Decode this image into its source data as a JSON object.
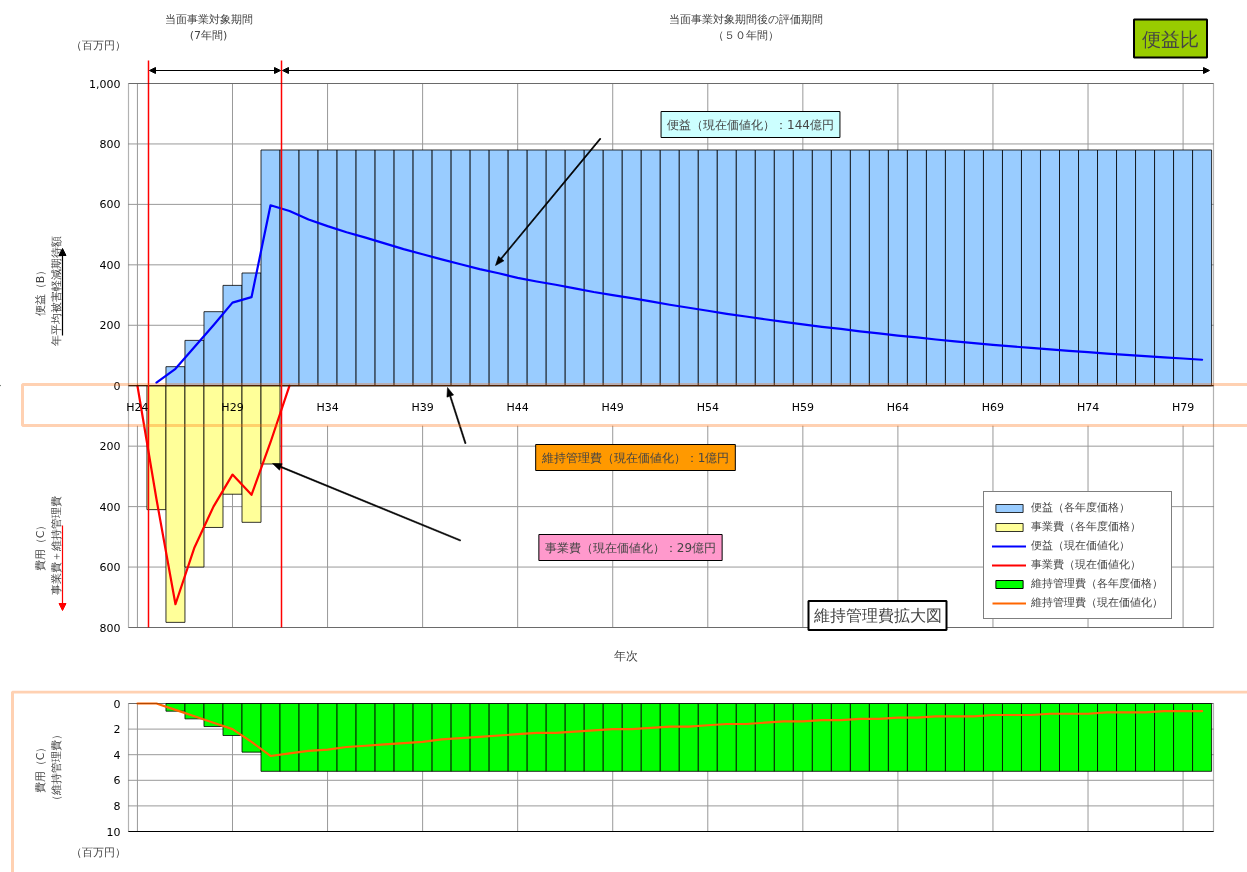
{
  "chart_data": [
    {
      "type": "bar",
      "categories": [
        "H24",
        null,
        null,
        null,
        null,
        "H29",
        null,
        null,
        null,
        null,
        "H34",
        null,
        null,
        null,
        null,
        "H39",
        null,
        null,
        null,
        null,
        "H44",
        null,
        null,
        null,
        null,
        "H49",
        null,
        null,
        null,
        null,
        "H54",
        null,
        null,
        null,
        null,
        "H59",
        null,
        null,
        null,
        null,
        "H64",
        null,
        null,
        null,
        null,
        "H69",
        null,
        null,
        null,
        null,
        "H74",
        null,
        null,
        null,
        null,
        "H79",
        null
      ],
      "xlabel": "年次",
      "ylabel": "便益（B）年平均被害軽減期待額",
      "ylim": [
        -800,
        1000
      ],
      "yticks": [
        {
          "value": -800,
          "label": "800"
        },
        {
          "value": -600,
          "label": "600"
        },
        {
          "value": -400,
          "label": "400"
        },
        {
          "value": -200,
          "label": "200"
        },
        0,
        200,
        400,
        600,
        800,
        {
          "value": 1000,
          "label": "1,000"
        }
      ],
      "grid": true,
      "legend": "bottom right",
      "series": [
        {
          "name": "便益（各年度価格）",
          "color": "#99ccff",
          "values": [
            null,
            null,
            63,
            150,
            245,
            332,
            373,
            780,
            780,
            780,
            780,
            780,
            780,
            780,
            780,
            780,
            780,
            780,
            780,
            780,
            780,
            780,
            780,
            780,
            780,
            780,
            780,
            780,
            780,
            780,
            780,
            780,
            780,
            780,
            780,
            780,
            780,
            780,
            780,
            780,
            780,
            780,
            780,
            780,
            780,
            780,
            780,
            780,
            780,
            780,
            780,
            780,
            780,
            780,
            780,
            780,
            780
          ]
        },
        {
          "name": "事業費（各年度価格）",
          "color": "#ffff99",
          "values": [
            null,
            -410,
            -783,
            -600,
            -469,
            -359,
            -452,
            -259,
            null,
            null,
            null,
            null,
            null,
            null,
            null,
            null,
            null,
            null,
            null,
            null,
            null,
            null,
            null,
            null,
            null,
            null,
            null,
            null,
            null,
            null,
            null,
            null,
            null,
            null,
            null,
            null,
            null,
            null,
            null,
            null,
            null,
            null,
            null,
            null,
            null,
            null,
            null,
            null,
            null,
            null,
            null,
            null,
            null,
            null,
            null,
            null,
            null
          ]
        },
        {
          "name": "便益（現在価値化）",
          "type": "line",
          "color": "#0000ff",
          "values": [
            null,
            10,
            56,
            128,
            200,
            275,
            293,
            597,
            578,
            550,
            528,
            508,
            490,
            471,
            452,
            435,
            418,
            402,
            386,
            372,
            357,
            345,
            334,
            322,
            310,
            300,
            290,
            279,
            268,
            258,
            248,
            238,
            229,
            220,
            211,
            203,
            195,
            188,
            180,
            173,
            166,
            160,
            153,
            147,
            141,
            135,
            130,
            125,
            120,
            115,
            111,
            106,
            102,
            98,
            94,
            90,
            86
          ]
        },
        {
          "name": "事業費（現在価値化）",
          "type": "line",
          "color": "#ff0000",
          "values": [
            0,
            -375,
            -723,
            -535,
            -400,
            -294,
            -361,
            -187,
            0,
            null,
            null,
            null,
            null,
            null,
            null,
            null,
            null,
            null,
            null,
            null,
            null,
            null,
            null,
            null,
            null,
            null,
            null,
            null,
            null,
            null,
            null,
            null,
            null,
            null,
            null,
            null,
            null,
            null,
            null,
            null,
            null,
            null,
            null,
            null,
            null,
            null,
            null,
            null,
            null,
            null,
            null,
            null,
            null,
            null,
            null,
            null,
            null
          ]
        }
      ],
      "annotations": [
        "当面事業対象期間(7年間)",
        "当面事業対象期間後の評価期間（５０年間）",
        "便益（現在価値化）：144億円",
        "維持管理費（現在価値化）：1億円",
        "事業費（現在価値化）：29億円",
        "（百万円）",
        "費用（C）事業費＋維持管理費",
        "維持管理費拡大図",
        "便益比"
      ]
    },
    {
      "type": "bar",
      "categories": [
        null,
        null,
        null,
        null,
        null,
        null,
        null,
        null,
        null,
        null,
        null,
        null,
        null,
        null,
        null,
        null,
        null,
        null,
        null,
        null,
        null,
        null,
        null,
        null,
        null,
        null,
        null,
        null,
        null,
        null,
        null,
        null,
        null,
        null,
        null,
        null,
        null,
        null,
        null,
        null,
        null,
        null,
        null,
        null,
        null,
        null,
        null,
        null,
        null,
        null,
        null,
        null,
        null,
        null,
        null,
        null,
        null
      ],
      "ylabel": "費用（C）（維持管理費）",
      "ylim": [
        10,
        0
      ],
      "yticks": [
        0,
        2,
        4,
        6,
        8,
        10
      ],
      "grid": true,
      "tick_labels": "y",
      "legend": "top",
      "series": [
        {
          "name": "維持管理費（各年度価格）",
          "color": "#00ff00",
          "values": [
            null,
            null,
            0.6,
            1.2,
            1.8,
            2.5,
            3.8,
            5.3,
            5.3,
            5.3,
            5.3,
            5.3,
            5.3,
            5.3,
            5.3,
            5.3,
            5.3,
            5.3,
            5.3,
            5.3,
            5.3,
            5.3,
            5.3,
            5.3,
            5.3,
            5.3,
            5.3,
            5.3,
            5.3,
            5.3,
            5.3,
            5.3,
            5.3,
            5.3,
            5.3,
            5.3,
            5.3,
            5.3,
            5.3,
            5.3,
            5.3,
            5.3,
            5.3,
            5.3,
            5.3,
            5.3,
            5.3,
            5.3,
            5.3,
            5.3,
            5.3,
            5.3,
            5.3,
            5.3,
            5.3,
            5.3,
            5.3
          ]
        },
        {
          "name": "維持管理費（現在価値化）",
          "type": "line",
          "color": "#ff6600",
          "values": [
            0,
            0,
            0.5,
            1.0,
            1.5,
            2.0,
            3.0,
            4.1,
            3.9,
            3.7,
            3.6,
            3.4,
            3.3,
            3.2,
            3.1,
            3.0,
            2.8,
            2.7,
            2.6,
            2.5,
            2.4,
            2.3,
            2.3,
            2.2,
            2.1,
            2.0,
            2.0,
            1.9,
            1.8,
            1.8,
            1.7,
            1.6,
            1.6,
            1.5,
            1.4,
            1.4,
            1.3,
            1.3,
            1.2,
            1.2,
            1.1,
            1.1,
            1.0,
            1.0,
            1.0,
            0.9,
            0.9,
            0.9,
            0.8,
            0.8,
            0.8,
            0.7,
            0.7,
            0.7,
            0.6,
            0.6,
            0.6
          ]
        }
      ],
      "annotations": [
        "（百万円）"
      ]
    }
  ]
}
